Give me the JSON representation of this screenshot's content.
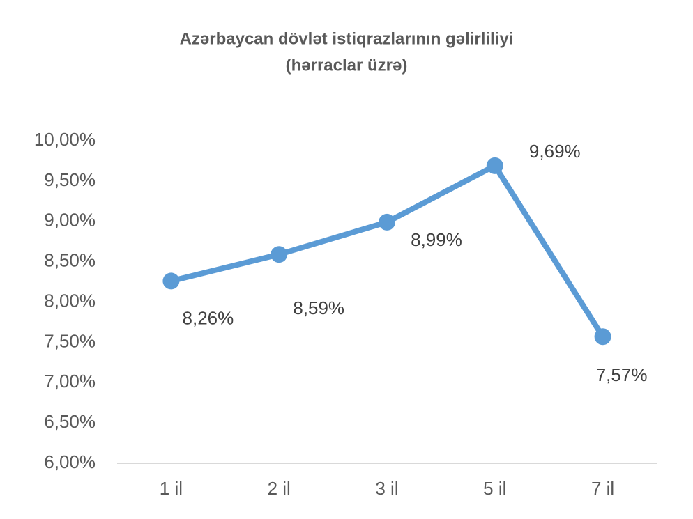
{
  "chart_data": {
    "type": "line",
    "title": [
      "Azərbaycan dövlət istiqrazlarının gəlirliliyi",
      "(hərraclar üzrə)"
    ],
    "categories": [
      "1 il",
      "2 il",
      "3 il",
      "5 il",
      "7 il"
    ],
    "values": [
      8.26,
      8.59,
      8.99,
      9.69,
      7.57
    ],
    "value_labels": [
      "8,26%",
      "8,59%",
      "8,99%",
      "9,69%",
      "7,57%"
    ],
    "color": "#5b9bd5",
    "ylim": [
      6,
      10
    ],
    "yticks": [
      {
        "value": 6,
        "label": "6,00%"
      },
      {
        "value": 6.5,
        "label": "6,50%"
      },
      {
        "value": 7,
        "label": "7,00%"
      },
      {
        "value": 7.5,
        "label": "7,50%"
      },
      {
        "value": 8,
        "label": "8,00%"
      },
      {
        "value": 8.5,
        "label": "8,50%"
      },
      {
        "value": 9,
        "label": "9,00%"
      },
      {
        "value": 9.5,
        "label": "9,50%"
      },
      {
        "value": 10,
        "label": "10,00%"
      }
    ],
    "grid": false
  }
}
